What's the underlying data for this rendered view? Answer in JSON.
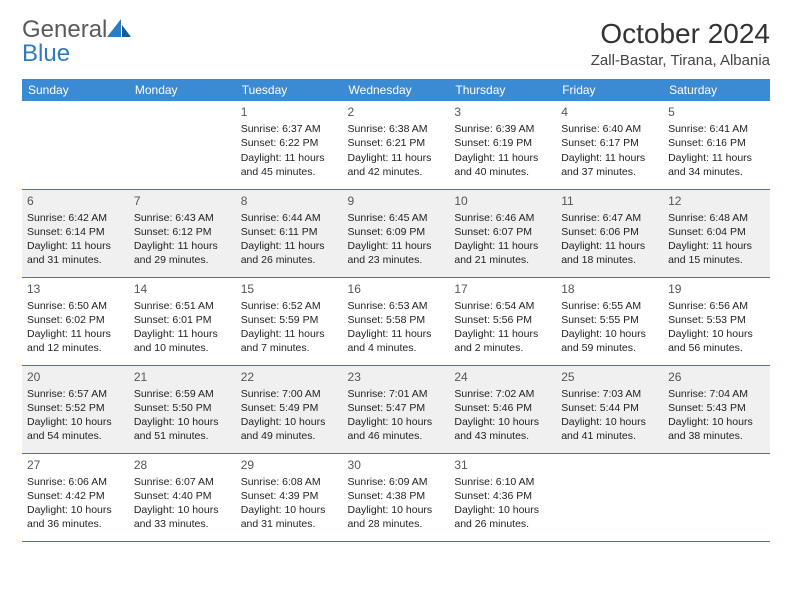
{
  "logo": {
    "text1": "General",
    "text2": "Blue"
  },
  "title": "October 2024",
  "location": "Zall-Bastar, Tirana, Albania",
  "colors": {
    "header_bg": "#3b8bd4",
    "border": "#2d7bc0",
    "alt_row": "#f0f0f0"
  },
  "day_headers": [
    "Sunday",
    "Monday",
    "Tuesday",
    "Wednesday",
    "Thursday",
    "Friday",
    "Saturday"
  ],
  "weeks": [
    [
      null,
      null,
      {
        "n": "1",
        "sr": "6:37 AM",
        "ss": "6:22 PM",
        "dl": "11 hours and 45 minutes."
      },
      {
        "n": "2",
        "sr": "6:38 AM",
        "ss": "6:21 PM",
        "dl": "11 hours and 42 minutes."
      },
      {
        "n": "3",
        "sr": "6:39 AM",
        "ss": "6:19 PM",
        "dl": "11 hours and 40 minutes."
      },
      {
        "n": "4",
        "sr": "6:40 AM",
        "ss": "6:17 PM",
        "dl": "11 hours and 37 minutes."
      },
      {
        "n": "5",
        "sr": "6:41 AM",
        "ss": "6:16 PM",
        "dl": "11 hours and 34 minutes."
      }
    ],
    [
      {
        "n": "6",
        "sr": "6:42 AM",
        "ss": "6:14 PM",
        "dl": "11 hours and 31 minutes."
      },
      {
        "n": "7",
        "sr": "6:43 AM",
        "ss": "6:12 PM",
        "dl": "11 hours and 29 minutes."
      },
      {
        "n": "8",
        "sr": "6:44 AM",
        "ss": "6:11 PM",
        "dl": "11 hours and 26 minutes."
      },
      {
        "n": "9",
        "sr": "6:45 AM",
        "ss": "6:09 PM",
        "dl": "11 hours and 23 minutes."
      },
      {
        "n": "10",
        "sr": "6:46 AM",
        "ss": "6:07 PM",
        "dl": "11 hours and 21 minutes."
      },
      {
        "n": "11",
        "sr": "6:47 AM",
        "ss": "6:06 PM",
        "dl": "11 hours and 18 minutes."
      },
      {
        "n": "12",
        "sr": "6:48 AM",
        "ss": "6:04 PM",
        "dl": "11 hours and 15 minutes."
      }
    ],
    [
      {
        "n": "13",
        "sr": "6:50 AM",
        "ss": "6:02 PM",
        "dl": "11 hours and 12 minutes."
      },
      {
        "n": "14",
        "sr": "6:51 AM",
        "ss": "6:01 PM",
        "dl": "11 hours and 10 minutes."
      },
      {
        "n": "15",
        "sr": "6:52 AM",
        "ss": "5:59 PM",
        "dl": "11 hours and 7 minutes."
      },
      {
        "n": "16",
        "sr": "6:53 AM",
        "ss": "5:58 PM",
        "dl": "11 hours and 4 minutes."
      },
      {
        "n": "17",
        "sr": "6:54 AM",
        "ss": "5:56 PM",
        "dl": "11 hours and 2 minutes."
      },
      {
        "n": "18",
        "sr": "6:55 AM",
        "ss": "5:55 PM",
        "dl": "10 hours and 59 minutes."
      },
      {
        "n": "19",
        "sr": "6:56 AM",
        "ss": "5:53 PM",
        "dl": "10 hours and 56 minutes."
      }
    ],
    [
      {
        "n": "20",
        "sr": "6:57 AM",
        "ss": "5:52 PM",
        "dl": "10 hours and 54 minutes."
      },
      {
        "n": "21",
        "sr": "6:59 AM",
        "ss": "5:50 PM",
        "dl": "10 hours and 51 minutes."
      },
      {
        "n": "22",
        "sr": "7:00 AM",
        "ss": "5:49 PM",
        "dl": "10 hours and 49 minutes."
      },
      {
        "n": "23",
        "sr": "7:01 AM",
        "ss": "5:47 PM",
        "dl": "10 hours and 46 minutes."
      },
      {
        "n": "24",
        "sr": "7:02 AM",
        "ss": "5:46 PM",
        "dl": "10 hours and 43 minutes."
      },
      {
        "n": "25",
        "sr": "7:03 AM",
        "ss": "5:44 PM",
        "dl": "10 hours and 41 minutes."
      },
      {
        "n": "26",
        "sr": "7:04 AM",
        "ss": "5:43 PM",
        "dl": "10 hours and 38 minutes."
      }
    ],
    [
      {
        "n": "27",
        "sr": "6:06 AM",
        "ss": "4:42 PM",
        "dl": "10 hours and 36 minutes."
      },
      {
        "n": "28",
        "sr": "6:07 AM",
        "ss": "4:40 PM",
        "dl": "10 hours and 33 minutes."
      },
      {
        "n": "29",
        "sr": "6:08 AM",
        "ss": "4:39 PM",
        "dl": "10 hours and 31 minutes."
      },
      {
        "n": "30",
        "sr": "6:09 AM",
        "ss": "4:38 PM",
        "dl": "10 hours and 28 minutes."
      },
      {
        "n": "31",
        "sr": "6:10 AM",
        "ss": "4:36 PM",
        "dl": "10 hours and 26 minutes."
      },
      null,
      null
    ]
  ],
  "labels": {
    "sunrise": "Sunrise:",
    "sunset": "Sunset:",
    "daylight": "Daylight:"
  }
}
